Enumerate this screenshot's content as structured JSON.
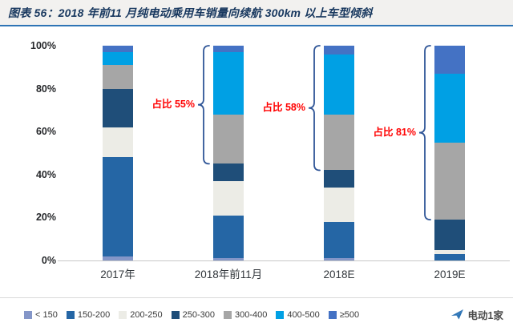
{
  "title": "图表 56：2018 年前11 月纯电动乘用车销量向续航 300km 以上车型倾斜",
  "chart_data": {
    "type": "bar",
    "stacked": true,
    "percent_stacked": true,
    "categories": [
      "2017年",
      "2018年前11月",
      "2018E",
      "2019E"
    ],
    "series": [
      {
        "name": "< 150",
        "color": "#8496c8",
        "values": [
          2,
          1,
          1,
          0
        ]
      },
      {
        "name": "150-200",
        "color": "#2566a5",
        "values": [
          46,
          20,
          17,
          3
        ]
      },
      {
        "name": "200-250",
        "color": "#ecece6",
        "values": [
          14,
          16,
          16,
          2
        ]
      },
      {
        "name": "250-300",
        "color": "#1f4e79",
        "values": [
          18,
          8,
          8,
          14
        ]
      },
      {
        "name": "300-400",
        "color": "#a6a6a6",
        "values": [
          11,
          23,
          26,
          36
        ]
      },
      {
        "name": "400-500",
        "color": "#00a0e4",
        "values": [
          6,
          29,
          28,
          32
        ]
      },
      {
        "name": "≥500",
        "color": "#4472c4",
        "values": [
          3,
          3,
          4,
          13
        ]
      }
    ],
    "ylabel": "",
    "xlabel": "",
    "ylim": [
      0,
      100
    ],
    "yticks": [
      0,
      20,
      40,
      60,
      80,
      100
    ],
    "ytick_suffix": "%",
    "grid": false,
    "legend_position": "bottom",
    "brace_color": "#2f5597",
    "annotation_color": "#ff0000",
    "annotations": [
      {
        "label": "占比 55%",
        "category_index": 1,
        "span_from_pct": 45,
        "span_to_pct": 100
      },
      {
        "label": "占比 58%",
        "category_index": 2,
        "span_from_pct": 42,
        "span_to_pct": 100
      },
      {
        "label": "占比 81%",
        "category_index": 3,
        "span_from_pct": 19,
        "span_to_pct": 100
      }
    ]
  },
  "footer": {
    "brand": "电动1家"
  }
}
